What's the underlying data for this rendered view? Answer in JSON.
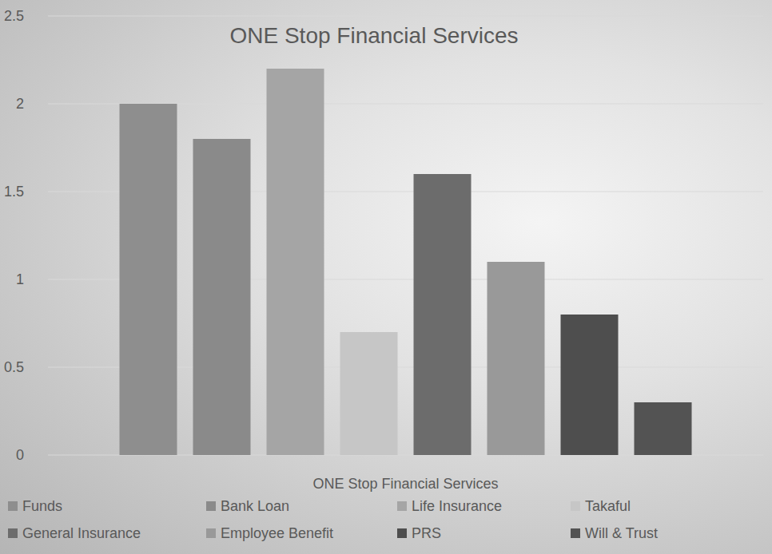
{
  "chart_data": {
    "type": "bar",
    "title": "ONE Stop Financial Services",
    "categories": [
      "ONE Stop Financial Services"
    ],
    "series": [
      {
        "name": "Funds",
        "color": "#8e8e8e",
        "values": [
          2.0
        ]
      },
      {
        "name": "Bank Loan",
        "color": "#8a8a8a",
        "values": [
          1.8
        ]
      },
      {
        "name": "Life Insurance",
        "color": "#a5a5a5",
        "values": [
          2.2
        ]
      },
      {
        "name": "Takaful",
        "color": "#c6c6c6",
        "values": [
          0.7
        ]
      },
      {
        "name": "General Insurance",
        "color": "#6c6c6c",
        "values": [
          1.6
        ]
      },
      {
        "name": "Employee Benefit",
        "color": "#999999",
        "values": [
          1.1
        ]
      },
      {
        "name": "PRS",
        "color": "#4e4e4e",
        "values": [
          0.8
        ]
      },
      {
        "name": "Will & Trust",
        "color": "#535353",
        "values": [
          0.3
        ]
      }
    ],
    "ylim": [
      0,
      2.5
    ],
    "yticks": [
      0,
      0.5,
      1,
      1.5,
      2,
      2.5
    ],
    "grid": true,
    "legend": "bottom"
  }
}
